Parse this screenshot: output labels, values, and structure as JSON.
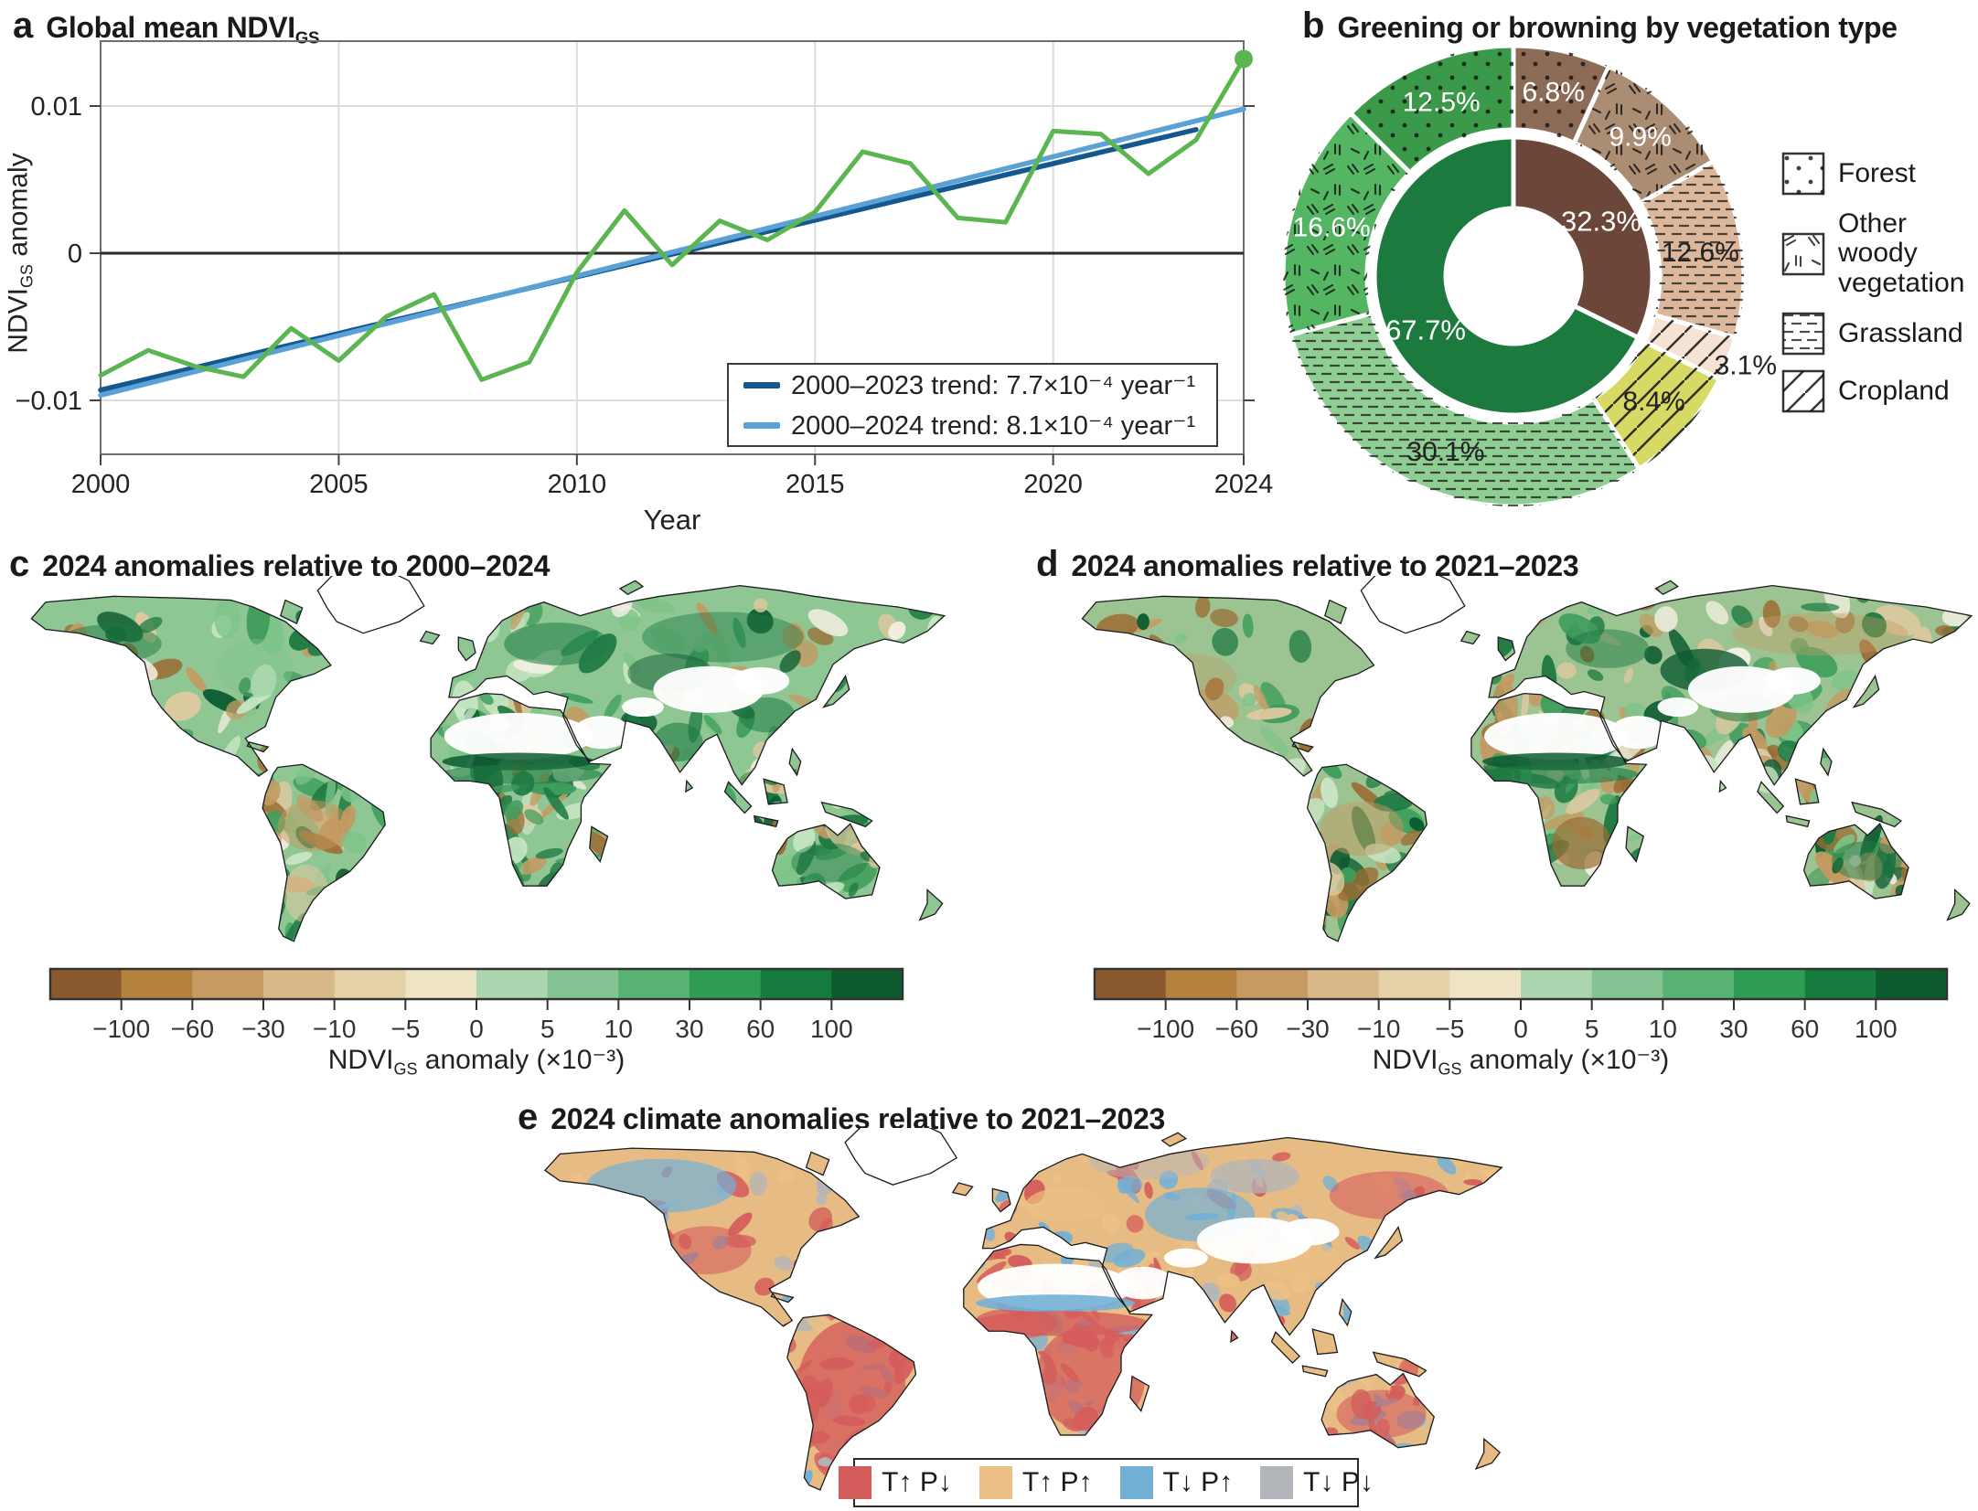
{
  "panels": {
    "a": {
      "letter": "a",
      "title_prefix": "Global mean NDVI",
      "title_sub": "GS",
      "x_label": "Year",
      "y_label_prefix": "NDVI",
      "y_label_sub": "GS",
      "y_label_suffix": " anomaly",
      "x_tick_labels": [
        "2000",
        "2005",
        "2010",
        "2015",
        "2020",
        "2024"
      ],
      "y_tick_labels": [
        "0.01",
        "0",
        "−0.01"
      ],
      "legend": [
        {
          "label": "2000–2023 trend: 7.7×10⁻⁴ year⁻¹"
        },
        {
          "label": "2000–2024 trend: 8.1×10⁻⁴ year⁻¹"
        }
      ]
    },
    "b": {
      "letter": "b",
      "title": "Greening or browning by vegetation type",
      "legend": [
        {
          "label": "Forest"
        },
        {
          "label": "Other woody vegetation"
        },
        {
          "label": "Grassland"
        },
        {
          "label": "Cropland"
        }
      ]
    },
    "c": {
      "letter": "c",
      "title": "2024 anomalies relative to 2000–2024",
      "colorbar_label_prefix": "NDVI",
      "colorbar_label_sub": "GS",
      "colorbar_label_suffix": " anomaly (×10⁻³)"
    },
    "d": {
      "letter": "d",
      "title": "2024 anomalies relative to 2021–2023",
      "colorbar_label_prefix": "NDVI",
      "colorbar_label_sub": "GS",
      "colorbar_label_suffix": " anomaly (×10⁻³)"
    },
    "e": {
      "letter": "e",
      "title": "2024 climate anomalies relative to 2021–2023",
      "legend": [
        {
          "label": "T↑ P↓"
        },
        {
          "label": "T↑ P↑"
        },
        {
          "label": "T↓ P↑"
        },
        {
          "label": "T↓ P↓"
        }
      ]
    }
  },
  "chart_data": [
    {
      "id": "a",
      "type": "line",
      "title": "Global mean NDVI_GS",
      "xlabel": "Year",
      "ylabel": "NDVI_GS anomaly",
      "xlim": [
        2000,
        2024
      ],
      "ylim": [
        -0.0145,
        0.0146
      ],
      "x_ticks": [
        2000,
        2005,
        2010,
        2015,
        2020,
        2024
      ],
      "y_ticks": [
        0.01,
        0,
        -0.01
      ],
      "grid": true,
      "years": [
        2000,
        2001,
        2002,
        2003,
        2004,
        2005,
        2006,
        2007,
        2008,
        2009,
        2010,
        2011,
        2012,
        2013,
        2014,
        2015,
        2016,
        2017,
        2018,
        2019,
        2020,
        2021,
        2022,
        2023,
        2024
      ],
      "ndvi_anomaly": [
        -0.0083,
        -0.0066,
        -0.0077,
        -0.0084,
        -0.0051,
        -0.0073,
        -0.0043,
        -0.0028,
        -0.0086,
        -0.0074,
        -0.0013,
        0.0029,
        -0.0008,
        0.0022,
        0.0009,
        0.0028,
        0.0069,
        0.0061,
        0.0024,
        0.0021,
        0.0083,
        0.0081,
        0.0054,
        0.0077,
        0.0132
      ],
      "series_color": "#5bb551",
      "endpoint_marker_year": 2024,
      "trends": [
        {
          "name": "2000–2023 trend",
          "rate": "7.7×10⁻⁴ year⁻¹",
          "color": "#14588f",
          "start": {
            "year": 2000,
            "value": -0.0093
          },
          "end": {
            "year": 2023,
            "value": 0.0084
          }
        },
        {
          "name": "2000–2024 trend",
          "rate": "8.1×10⁻⁴ year⁻¹",
          "color": "#5aa2d5",
          "start": {
            "year": 2000,
            "value": -0.00965
          },
          "end": {
            "year": 2024,
            "value": 0.0098
          }
        }
      ]
    },
    {
      "id": "b",
      "type": "pie",
      "title": "Greening or browning by vegetation type",
      "inner_ring": [
        {
          "name": "Browning",
          "value": 32.3,
          "label": "32.3%",
          "color": "#6b4639",
          "text_color": "#ffffff"
        },
        {
          "name": "Greening",
          "value": 67.7,
          "label": "67.7%",
          "color": "#1d7a3f",
          "text_color": "#ffffff"
        }
      ],
      "outer_ring": [
        {
          "name": "Forest (browning)",
          "value": 6.8,
          "label": "6.8%",
          "color": "#8c6b57",
          "pattern": "dots",
          "text_color": "#ffffff"
        },
        {
          "name": "Other woody vegetation (browning)",
          "value": 9.9,
          "label": "9.9%",
          "color": "#ab8d74",
          "pattern": "woody",
          "text_color": "#ffffff"
        },
        {
          "name": "Grassland (browning)",
          "value": 12.6,
          "label": "12.6%",
          "color": "#dcb79c",
          "pattern": "dashes",
          "text_color": "#222222"
        },
        {
          "name": "Cropland (browning)",
          "value": 3.1,
          "label": "3.1%",
          "color": "#f6e3d5",
          "pattern": "diag",
          "text_color": "#222222",
          "label_outside": true
        },
        {
          "name": "Cropland (greening)",
          "value": 8.4,
          "label": "8.4%",
          "color": "#d6d964",
          "pattern": "diag",
          "text_color": "#222222"
        },
        {
          "name": "Grassland (greening)",
          "value": 30.1,
          "label": "30.1%",
          "color": "#8fce92",
          "pattern": "dashes",
          "text_color": "#222222"
        },
        {
          "name": "Other woody vegetation (greening)",
          "value": 16.6,
          "label": "16.6%",
          "color": "#54b563",
          "pattern": "woody",
          "text_color": "#ffffff"
        },
        {
          "name": "Forest (greening)",
          "value": 12.5,
          "label": "12.5%",
          "color": "#3b9a49",
          "pattern": "dots",
          "text_color": "#ffffff"
        }
      ],
      "legend": [
        "Forest",
        "Other woody vegetation",
        "Grassland",
        "Cropland"
      ]
    },
    {
      "id": "c",
      "type": "heatmap",
      "title": "2024 anomalies relative to 2000–2024",
      "colorbar": {
        "segment_colors": [
          "#8a5a2e",
          "#b5813f",
          "#c59b63",
          "#d8b888",
          "#e6d2a8",
          "#efe3c6",
          "#abd6b0",
          "#83c492",
          "#58b273",
          "#2f9c55",
          "#157c3d",
          "#0c5a2e"
        ],
        "tick_labels": [
          "−100",
          "−60",
          "−30",
          "−10",
          "−5",
          "0",
          "5",
          "10",
          "30",
          "60",
          "100"
        ],
        "label": "NDVI_GS anomaly (×10⁻³)"
      },
      "map_palette": {
        "base": "#8fc794",
        "greens": [
          "#3f9e5d",
          "#1e7a42",
          "#0d5b31",
          "#7ec489",
          "#c8e6c4"
        ],
        "browns": [
          "#c49a62",
          "#9b6c33",
          "#dfc9a0"
        ],
        "pale": "#f3efe2",
        "desert": "#ffffff",
        "outline": "#1b1b1b"
      }
    },
    {
      "id": "d",
      "type": "heatmap",
      "title": "2024 anomalies relative to 2021–2023",
      "colorbar": {
        "segment_colors": [
          "#8a5a2e",
          "#b5813f",
          "#c59b63",
          "#d8b888",
          "#e6d2a8",
          "#efe3c6",
          "#abd6b0",
          "#83c492",
          "#58b273",
          "#2f9c55",
          "#157c3d",
          "#0c5a2e"
        ],
        "tick_labels": [
          "−100",
          "−60",
          "−30",
          "−10",
          "−5",
          "0",
          "5",
          "10",
          "30",
          "60",
          "100"
        ],
        "label": "NDVI_GS anomaly (×10⁻³)"
      },
      "map_palette": {
        "base": "#9cc493",
        "greens": [
          "#3f9e5d",
          "#1e7a42",
          "#0d5b31",
          "#7ec489",
          "#c8e6c4"
        ],
        "browns": [
          "#c49a62",
          "#9b6c33",
          "#dfc9a0"
        ],
        "pale": "#f3efe2",
        "desert": "#ffffff",
        "outline": "#1b1b1b"
      }
    },
    {
      "id": "e",
      "type": "categorical-map",
      "title": "2024 climate anomalies relative to 2021–2023",
      "classes": [
        {
          "label": "T↑ P↓",
          "color": "#d45d5b"
        },
        {
          "label": "T↑ P↑",
          "color": "#edc185"
        },
        {
          "label": "T↓ P↑",
          "color": "#72b0d6"
        },
        {
          "label": "T↓ P↓",
          "color": "#b2b6ba"
        }
      ],
      "map_palette": {
        "base": "#e6bc84",
        "desert": "#ffffff",
        "outline": "#1b1b1b"
      }
    }
  ]
}
